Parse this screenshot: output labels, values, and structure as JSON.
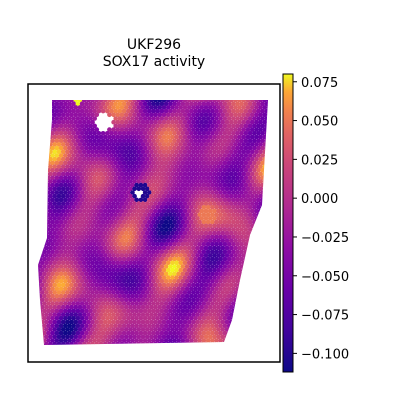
{
  "chart_data": {
    "type": "heatmap",
    "title": "UKF296",
    "subtitle": "SOX17 activity",
    "colormap": "plasma",
    "vmin": -0.112,
    "vmax": 0.08,
    "colorbar_ticks": [
      "0.075",
      "0.050",
      "0.025",
      "0.000",
      "−0.025",
      "−0.050",
      "−0.075",
      "−0.100"
    ],
    "colorbar_tick_values": [
      0.075,
      0.05,
      0.025,
      0.0,
      -0.025,
      -0.05,
      -0.075,
      -0.1
    ],
    "grid": false
  }
}
